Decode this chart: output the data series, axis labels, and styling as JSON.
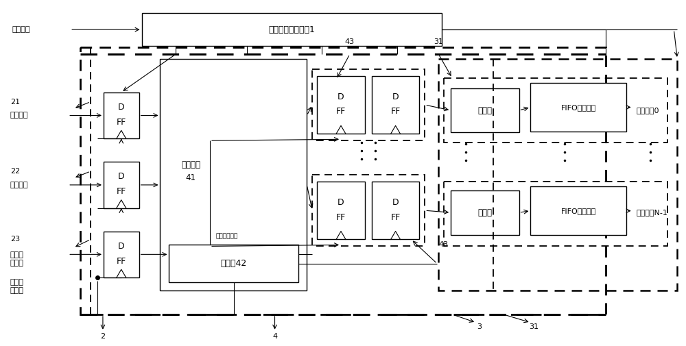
{
  "background_color": "#ffffff",
  "fig_width": 10.0,
  "fig_height": 5.05,
  "labels": {
    "enable_signal": "使能信号",
    "first_control": "第一控制电路模块1",
    "data_signal": "数据信号",
    "addr_signal": "地址信号",
    "ctrl_signal": "控制电\n压信号",
    "clk1_signal": "第一时\n钟信号",
    "register_heap_line1": "寄存器堆",
    "register_heap_line2": "41",
    "oscillator": "振荡器42",
    "second_clk": "第二时钟信号",
    "latch": "锁存器",
    "fifo": "FIFO输出电路",
    "out0": "输出信号0",
    "outN": "输出信号N-1",
    "label_21": "21",
    "label_22": "22",
    "label_23": "23",
    "label_43_top": "43",
    "label_31_top": "31",
    "label_43_mid": "43",
    "label_3": "3",
    "label_31_bot": "31",
    "label_2": "2",
    "label_4": "4",
    "D": "D",
    "FF": "FF"
  }
}
